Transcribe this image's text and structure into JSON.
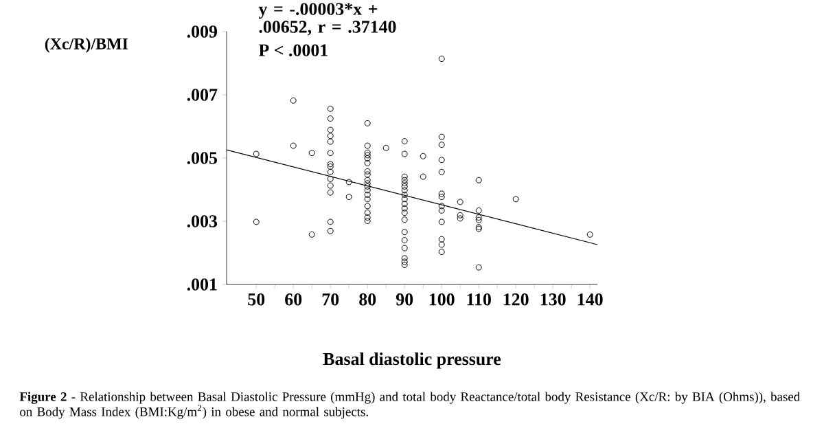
{
  "chart_data": {
    "type": "scatter",
    "xlabel": "Basal diastolic pressure",
    "ylabel": "(Xc/R)/BMI",
    "xlim": [
      42,
      142
    ],
    "xticks": [
      50,
      60,
      70,
      80,
      90,
      100,
      110,
      120,
      130,
      140
    ],
    "ylim": [
      0.001,
      0.009
    ],
    "yticks": [
      {
        "value": 0.001,
        "label": ".001"
      },
      {
        "value": 0.003,
        "label": ".003"
      },
      {
        "value": 0.005,
        "label": ".005"
      },
      {
        "value": 0.007,
        "label": ".007"
      },
      {
        "value": 0.009,
        "label": ".009"
      }
    ],
    "marker": "circle",
    "grid": false,
    "series": [
      {
        "color": "#000000",
        "x": [
          50,
          50,
          60,
          60,
          65,
          65,
          70,
          70,
          70,
          70,
          70,
          70,
          70,
          70,
          70,
          70,
          70,
          70,
          70,
          70,
          75,
          75,
          80,
          80,
          80,
          80,
          80,
          80,
          80,
          80,
          80,
          80,
          80,
          80,
          80,
          80,
          80,
          80,
          80,
          80,
          85,
          90,
          90,
          90,
          90,
          90,
          90,
          90,
          90,
          90,
          90,
          90,
          90,
          90,
          90,
          90,
          90,
          90,
          90,
          90,
          95,
          95,
          100,
          100,
          100,
          100,
          100,
          100,
          100,
          100,
          100,
          100,
          100,
          100,
          100,
          105,
          105,
          105,
          110,
          110,
          110,
          110,
          110,
          110,
          110,
          120,
          140
        ],
        "values": [
          0.00513,
          0.00298,
          0.00682,
          0.00539,
          0.00516,
          0.00258,
          0.00656,
          0.00625,
          0.00589,
          0.0057,
          0.00552,
          0.00516,
          0.00481,
          0.00473,
          0.00456,
          0.00434,
          0.00413,
          0.00391,
          0.00298,
          0.00269,
          0.00424,
          0.00377,
          0.0061,
          0.00539,
          0.00517,
          0.00509,
          0.00499,
          0.00484,
          0.00458,
          0.00448,
          0.0043,
          0.0042,
          0.0041,
          0.00398,
          0.00384,
          0.0037,
          0.00348,
          0.00327,
          0.00312,
          0.00301,
          0.00532,
          0.00553,
          0.00513,
          0.00441,
          0.0043,
          0.0042,
          0.0041,
          0.00398,
          0.00384,
          0.0037,
          0.00355,
          0.00341,
          0.00327,
          0.00305,
          0.00266,
          0.0024,
          0.00215,
          0.00183,
          0.00172,
          0.00162,
          0.00506,
          0.00441,
          0.00814,
          0.00567,
          0.00542,
          0.00494,
          0.00456,
          0.00387,
          0.00377,
          0.00348,
          0.00334,
          0.00298,
          0.00243,
          0.00226,
          0.00203,
          0.00361,
          0.00319,
          0.00309,
          0.0043,
          0.00334,
          0.00312,
          0.00304,
          0.00281,
          0.00276,
          0.00154,
          0.0037,
          0.00258
        ]
      },
      {
        "type": "line",
        "color": "#000000",
        "marker": "none",
        "x": [
          42,
          142
        ],
        "values": [
          0.00526,
          0.00226
        ]
      }
    ],
    "annotations": [
      "y = -.00003*x + .00652, r = .37140",
      "P < .0001",
      "**Figure 2** - Relationship between Basal Diastolic Pressure (mmHg) and total body Reactance/total body Resistance (Xc/R: by BIA (Ohms)), based on Body Mass Index (BMI:Kg/m$^{2}$) in obese and normal subjects."
    ]
  }
}
